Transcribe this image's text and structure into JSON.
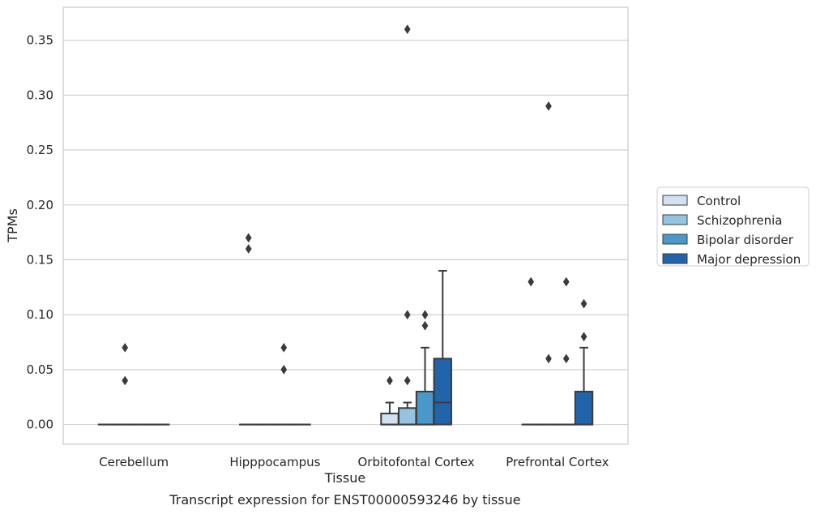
{
  "caption": "Transcript expression for ENST00000593246 by tissue",
  "chart_data": {
    "type": "box",
    "xlabel": "Tissue",
    "ylabel": "TPMs",
    "ylim": [
      -0.018,
      0.38
    ],
    "yticks": [
      "0.00",
      "0.05",
      "0.10",
      "0.15",
      "0.20",
      "0.25",
      "0.30",
      "0.35"
    ],
    "grid": "horizontal",
    "legend_position": "right",
    "categories": [
      "Cerebellum",
      "Hipppocampus",
      "Orbitofontal Cortex",
      "Prefrontal Cortex"
    ],
    "series": [
      {
        "name": "Control",
        "color": "#d0e1f2",
        "boxes": [
          {
            "q1": 0.0,
            "median": 0.0,
            "q3": 0.0,
            "whisker_low": 0.0,
            "whisker_high": 0.0,
            "outliers": []
          },
          {
            "q1": 0.0,
            "median": 0.0,
            "q3": 0.0,
            "whisker_low": 0.0,
            "whisker_high": 0.0,
            "outliers": [
              0.16,
              0.17
            ]
          },
          {
            "q1": 0.0,
            "median": 0.0,
            "q3": 0.01,
            "whisker_low": 0.0,
            "whisker_high": 0.02,
            "outliers": [
              0.04
            ]
          },
          {
            "q1": 0.0,
            "median": 0.0,
            "q3": 0.0,
            "whisker_low": 0.0,
            "whisker_high": 0.0,
            "outliers": [
              0.13
            ]
          }
        ]
      },
      {
        "name": "Schizophrenia",
        "color": "#94c4df",
        "boxes": [
          {
            "q1": 0.0,
            "median": 0.0,
            "q3": 0.0,
            "whisker_low": 0.0,
            "whisker_high": 0.0,
            "outliers": [
              0.04,
              0.07
            ]
          },
          {
            "q1": 0.0,
            "median": 0.0,
            "q3": 0.0,
            "whisker_low": 0.0,
            "whisker_high": 0.0,
            "outliers": []
          },
          {
            "q1": 0.0,
            "median": 0.0,
            "q3": 0.015,
            "whisker_low": 0.0,
            "whisker_high": 0.02,
            "outliers": [
              0.04,
              0.1,
              0.36
            ]
          },
          {
            "q1": 0.0,
            "median": 0.0,
            "q3": 0.0,
            "whisker_low": 0.0,
            "whisker_high": 0.0,
            "outliers": [
              0.06,
              0.29
            ]
          }
        ]
      },
      {
        "name": "Bipolar disorder",
        "color": "#4a98c9",
        "boxes": [
          {
            "q1": 0.0,
            "median": 0.0,
            "q3": 0.0,
            "whisker_low": 0.0,
            "whisker_high": 0.0,
            "outliers": []
          },
          {
            "q1": 0.0,
            "median": 0.0,
            "q3": 0.0,
            "whisker_low": 0.0,
            "whisker_high": 0.0,
            "outliers": [
              0.05,
              0.07
            ]
          },
          {
            "q1": 0.0,
            "median": 0.0,
            "q3": 0.03,
            "whisker_low": 0.0,
            "whisker_high": 0.07,
            "outliers": [
              0.09,
              0.1
            ]
          },
          {
            "q1": 0.0,
            "median": 0.0,
            "q3": 0.0,
            "whisker_low": 0.0,
            "whisker_high": 0.0,
            "outliers": [
              0.06,
              0.13
            ]
          }
        ]
      },
      {
        "name": "Major depression",
        "color": "#2164ab",
        "boxes": [
          {
            "q1": 0.0,
            "median": 0.0,
            "q3": 0.0,
            "whisker_low": 0.0,
            "whisker_high": 0.0,
            "outliers": []
          },
          {
            "q1": 0.0,
            "median": 0.0,
            "q3": 0.0,
            "whisker_low": 0.0,
            "whisker_high": 0.0,
            "outliers": []
          },
          {
            "q1": 0.0,
            "median": 0.02,
            "q3": 0.06,
            "whisker_low": 0.0,
            "whisker_high": 0.14,
            "outliers": []
          },
          {
            "q1": 0.0,
            "median": 0.0,
            "q3": 0.03,
            "whisker_low": 0.0,
            "whisker_high": 0.07,
            "outliers": [
              0.08,
              0.11
            ]
          }
        ]
      }
    ]
  }
}
